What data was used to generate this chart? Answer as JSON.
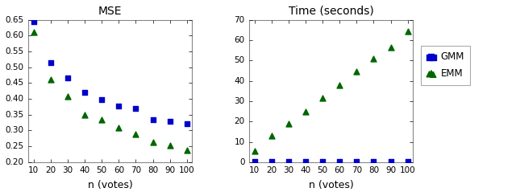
{
  "x": [
    10,
    20,
    30,
    40,
    50,
    60,
    70,
    80,
    90,
    100
  ],
  "mse_gmm": [
    0.645,
    0.515,
    0.465,
    0.42,
    0.398,
    0.378,
    0.37,
    0.335,
    0.328,
    0.322
  ],
  "mse_emm": [
    0.61,
    0.46,
    0.408,
    0.35,
    0.333,
    0.308,
    0.288,
    0.263,
    0.253,
    0.238
  ],
  "time_gmm": [
    0.4,
    0.4,
    0.4,
    0.4,
    0.4,
    0.4,
    0.4,
    0.4,
    0.4,
    0.4
  ],
  "time_emm": [
    5.5,
    13.0,
    19.0,
    25.0,
    31.5,
    38.0,
    44.5,
    51.0,
    56.5,
    64.5
  ],
  "mse_title": "MSE",
  "time_title": "Time (seconds)",
  "xlabel": "n (votes)",
  "mse_ylim": [
    0.2,
    0.65
  ],
  "time_ylim": [
    0,
    70
  ],
  "mse_yticks": [
    0.2,
    0.25,
    0.3,
    0.35,
    0.4,
    0.45,
    0.5,
    0.55,
    0.6,
    0.65
  ],
  "time_yticks": [
    0,
    10,
    20,
    30,
    40,
    50,
    60,
    70
  ],
  "color_gmm": "#0000cc",
  "color_emm": "#006600",
  "legend_labels": [
    "GMM",
    "EMM"
  ]
}
